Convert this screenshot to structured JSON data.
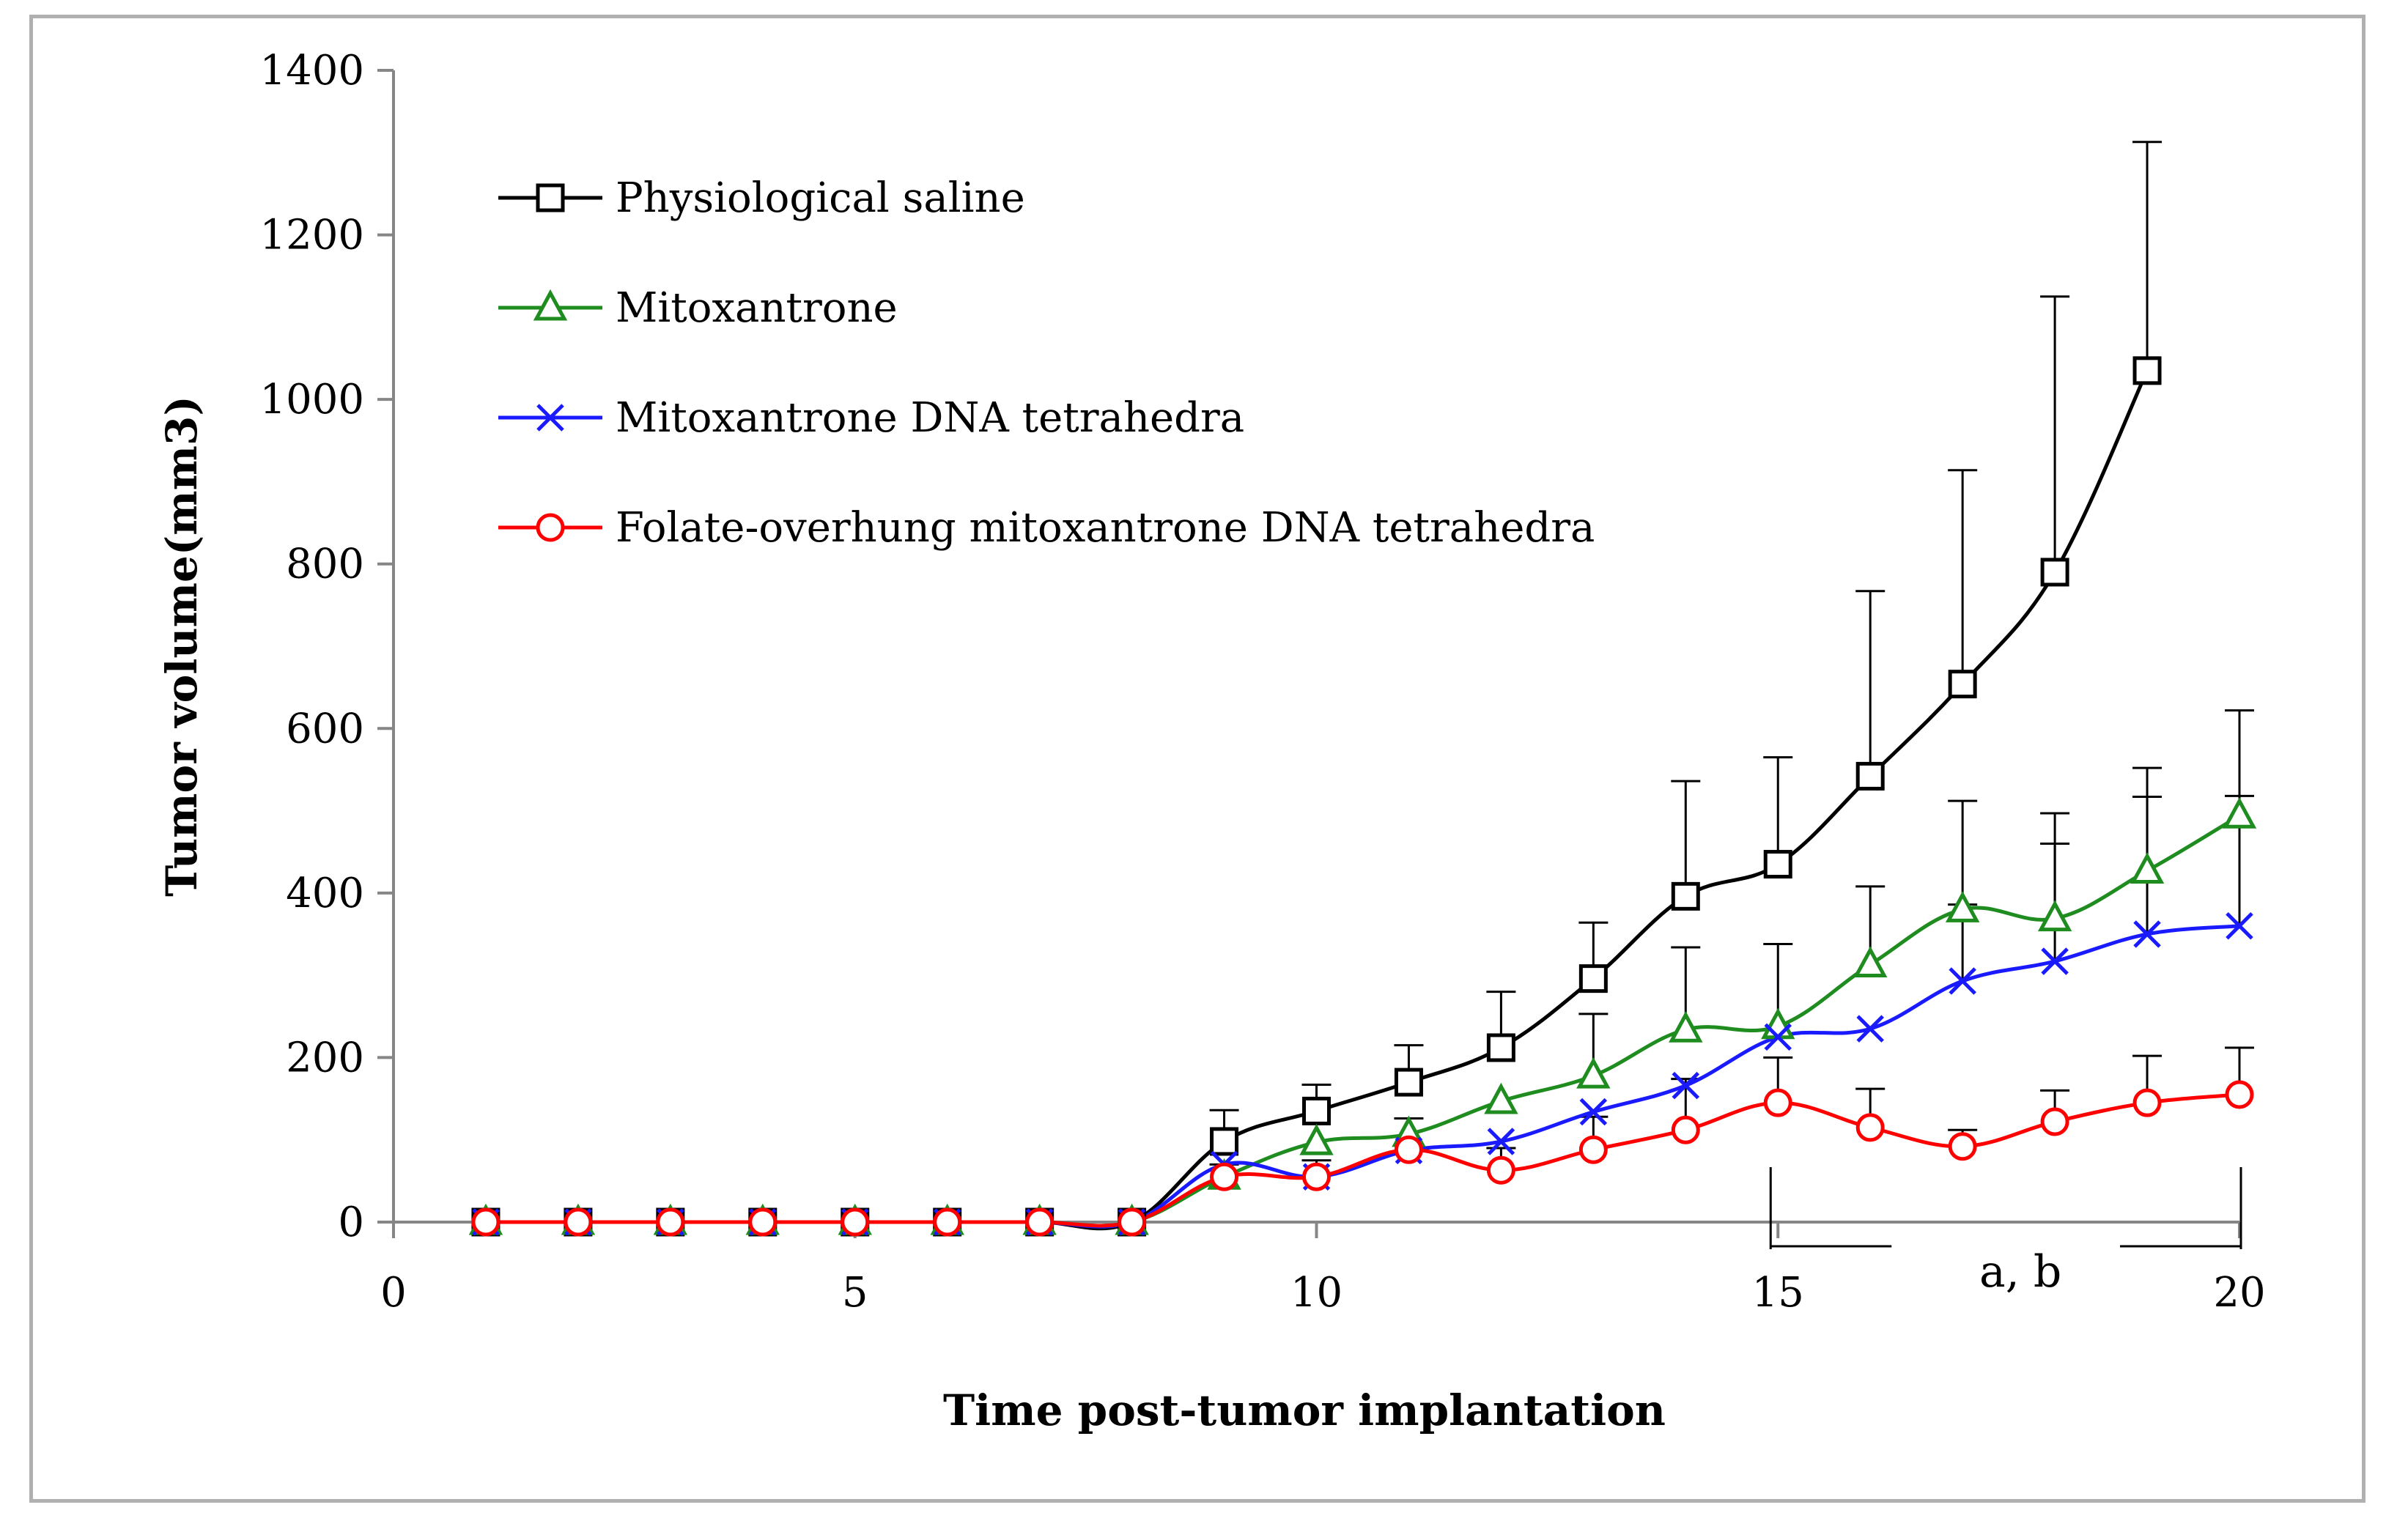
{
  "chart_data": {
    "type": "line",
    "title": "",
    "xlabel": "Time post-tumor implantation",
    "ylabel": "Tumor volume(mm3)",
    "xlim": [
      0,
      20
    ],
    "ylim": [
      0,
      1400
    ],
    "xticks": [
      0,
      5,
      10,
      15,
      20
    ],
    "yticks": [
      0,
      200,
      400,
      600,
      800,
      1000,
      1200,
      1400
    ],
    "legend_position": "top-left",
    "annotation": "a, b",
    "series": [
      {
        "name": "Physiological saline",
        "color": "#000000",
        "marker": "square",
        "x": [
          1,
          2,
          3,
          4,
          5,
          6,
          7,
          8,
          9,
          10,
          11,
          12,
          13,
          14,
          15,
          16,
          17,
          18,
          19
        ],
        "values": [
          0,
          0,
          0,
          0,
          0,
          0,
          0,
          0,
          98,
          135,
          170,
          212,
          296,
          396,
          435,
          542,
          654,
          790,
          1035
        ],
        "error": [
          0,
          0,
          0,
          0,
          0,
          0,
          0,
          0,
          38,
          32,
          45,
          68,
          68,
          140,
          130,
          225,
          260,
          335,
          278
        ]
      },
      {
        "name": "Mitoxantrone",
        "color": "#1e8c1e",
        "marker": "triangle",
        "x": [
          1,
          2,
          3,
          4,
          5,
          6,
          7,
          8,
          9,
          10,
          11,
          12,
          13,
          14,
          15,
          16,
          17,
          18,
          19,
          20
        ],
        "values": [
          0,
          0,
          0,
          0,
          0,
          0,
          0,
          0,
          55,
          97,
          107,
          147,
          178,
          234,
          238,
          313,
          380,
          369,
          427,
          494
        ],
        "error": [
          0,
          0,
          0,
          0,
          0,
          0,
          0,
          0,
          0,
          0,
          0,
          0,
          75,
          100,
          100,
          95,
          132,
          128,
          125,
          128
        ]
      },
      {
        "name": "Mitoxantrone DNA tetrahedra",
        "color": "#1a1aff",
        "marker": "x",
        "x": [
          1,
          2,
          3,
          4,
          5,
          6,
          7,
          8,
          9,
          10,
          11,
          12,
          13,
          14,
          15,
          16,
          17,
          18,
          19,
          20
        ],
        "values": [
          0,
          0,
          0,
          0,
          0,
          0,
          0,
          0,
          70,
          55,
          87,
          98,
          134,
          166,
          225,
          235,
          293,
          317,
          350,
          360
        ],
        "error": [
          0,
          0,
          0,
          0,
          0,
          0,
          0,
          0,
          0,
          0,
          0,
          0,
          0,
          0,
          0,
          0,
          93,
          143,
          167,
          158
        ]
      },
      {
        "name": "Folate-overhung mitoxantrone DNA tetrahedra",
        "color": "#ff0000",
        "marker": "circle",
        "x": [
          1,
          2,
          3,
          4,
          5,
          6,
          7,
          8,
          9,
          10,
          11,
          12,
          13,
          14,
          15,
          16,
          17,
          18,
          19,
          20
        ],
        "values": [
          0,
          0,
          0,
          0,
          0,
          0,
          0,
          0,
          55,
          55,
          88,
          63,
          88,
          112,
          145,
          115,
          92,
          122,
          145,
          155
        ],
        "error": [
          0,
          0,
          0,
          0,
          0,
          0,
          0,
          0,
          15,
          20,
          38,
          27,
          40,
          62,
          55,
          47,
          20,
          38,
          57,
          57
        ]
      }
    ]
  }
}
